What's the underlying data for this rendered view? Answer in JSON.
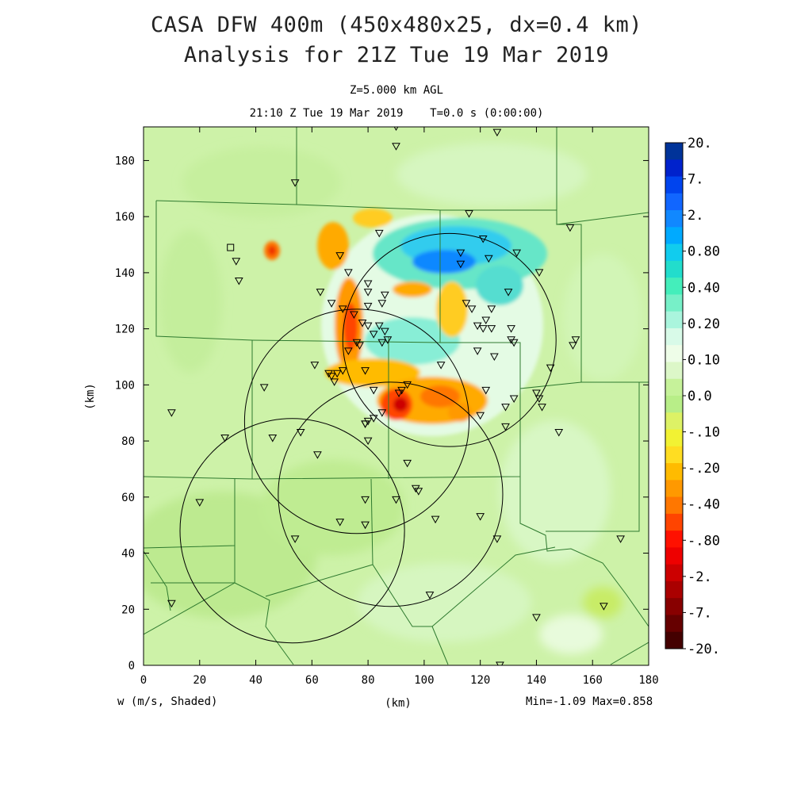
{
  "title": {
    "line1": "CASA DFW 400m (450x480x25, dx=0.4 km)",
    "line2": "Analysis for 21Z Tue 19 Mar 2019",
    "level": "Z=5.000 km AGL",
    "valid_time": "21:10 Z Tue 19 Mar 2019    T=0.0 s (0:00:00)"
  },
  "axes": {
    "x_label": "(km)",
    "y_label": "(km)",
    "x_range": [
      0,
      180
    ],
    "y_range": [
      0,
      192
    ],
    "x_ticks": [
      0,
      20,
      40,
      60,
      80,
      100,
      120,
      140,
      160,
      180
    ],
    "y_ticks": [
      0,
      20,
      40,
      60,
      80,
      100,
      120,
      140,
      160,
      180
    ]
  },
  "footer": {
    "variable": "w (m/s, Shaded)",
    "min_max": "Min=-1.09 Max=0.858"
  },
  "colorbar": {
    "labels": [
      "20.",
      "7.",
      "2.",
      "0.80",
      "0.40",
      "0.20",
      "0.10",
      "0.0",
      "-.10",
      "-.20",
      "-.40",
      "-.80",
      "-2.",
      "-7.",
      "-20."
    ],
    "colors": [
      "#003399",
      "#0022cc",
      "#0044ee",
      "#1166ff",
      "#1188ff",
      "#00aaff",
      "#11ccee",
      "#22ddcc",
      "#44eebb",
      "#77f0c8",
      "#aaf5dd",
      "#d8fae8",
      "#eefde8",
      "#dcf7c8",
      "#c6f29a",
      "#b8ee88",
      "#ddf266",
      "#f2f233",
      "#ffdd22",
      "#ffbb00",
      "#ff9900",
      "#ff7700",
      "#ff4400",
      "#ff1100",
      "#ee0000",
      "#cc0000",
      "#aa0000",
      "#880000",
      "#660000",
      "#440000"
    ]
  },
  "radar_rings": [
    {
      "x": 109,
      "y": 116,
      "r": 38
    },
    {
      "x": 76,
      "y": 87,
      "r": 40
    },
    {
      "x": 88,
      "y": 61,
      "r": 40
    },
    {
      "x": 53,
      "y": 48,
      "r": 40
    }
  ],
  "square_station": {
    "x": 31,
    "y": 149
  },
  "stations": [
    [
      90,
      192
    ],
    [
      90,
      185
    ],
    [
      126,
      190
    ],
    [
      54,
      172
    ],
    [
      116,
      161
    ],
    [
      121,
      152
    ],
    [
      152,
      156
    ],
    [
      33,
      144
    ],
    [
      34,
      137
    ],
    [
      70,
      146
    ],
    [
      84,
      154
    ],
    [
      113,
      147
    ],
    [
      113,
      143
    ],
    [
      123,
      145
    ],
    [
      133,
      147
    ],
    [
      141,
      140
    ],
    [
      73,
      140
    ],
    [
      63,
      133
    ],
    [
      80,
      136
    ],
    [
      80,
      133
    ],
    [
      86,
      132
    ],
    [
      80,
      128
    ],
    [
      67,
      129
    ],
    [
      71,
      127
    ],
    [
      75,
      125
    ],
    [
      85,
      129
    ],
    [
      130,
      133
    ],
    [
      115,
      129
    ],
    [
      117,
      127
    ],
    [
      124,
      127
    ],
    [
      122,
      123
    ],
    [
      119,
      121
    ],
    [
      121,
      120
    ],
    [
      124,
      120
    ],
    [
      131,
      120
    ],
    [
      78,
      122
    ],
    [
      84,
      121
    ],
    [
      80,
      121
    ],
    [
      86,
      119
    ],
    [
      82,
      118
    ],
    [
      85,
      115
    ],
    [
      87,
      116
    ],
    [
      77,
      114
    ],
    [
      76,
      115
    ],
    [
      73,
      112
    ],
    [
      119,
      112
    ],
    [
      125,
      110
    ],
    [
      131,
      116
    ],
    [
      132,
      115
    ],
    [
      154,
      116
    ],
    [
      153,
      114
    ],
    [
      61,
      107
    ],
    [
      66,
      104
    ],
    [
      67,
      103
    ],
    [
      69,
      104
    ],
    [
      71,
      105
    ],
    [
      68,
      101
    ],
    [
      79,
      105
    ],
    [
      106,
      107
    ],
    [
      145,
      106
    ],
    [
      43,
      99
    ],
    [
      82,
      98
    ],
    [
      92,
      98
    ],
    [
      94,
      100
    ],
    [
      91,
      97
    ],
    [
      122,
      98
    ],
    [
      140,
      97
    ],
    [
      141,
      95
    ],
    [
      132,
      95
    ],
    [
      142,
      92
    ],
    [
      129,
      92
    ],
    [
      120,
      89
    ],
    [
      85,
      90
    ],
    [
      82,
      88
    ],
    [
      80,
      87
    ],
    [
      79,
      86
    ],
    [
      79,
      86
    ],
    [
      129,
      85
    ],
    [
      148,
      83
    ],
    [
      10,
      90
    ],
    [
      29,
      81
    ],
    [
      46,
      81
    ],
    [
      56,
      83
    ],
    [
      62,
      75
    ],
    [
      80,
      80
    ],
    [
      94,
      72
    ],
    [
      97,
      63
    ],
    [
      98,
      62
    ],
    [
      90,
      59
    ],
    [
      79,
      59
    ],
    [
      79,
      50
    ],
    [
      70,
      51
    ],
    [
      104,
      52
    ],
    [
      120,
      53
    ],
    [
      126,
      45
    ],
    [
      20,
      58
    ],
    [
      54,
      45
    ],
    [
      170,
      45
    ],
    [
      10,
      22
    ],
    [
      102,
      25
    ],
    [
      140,
      17
    ],
    [
      164,
      21
    ],
    [
      127,
      0
    ]
  ]
}
